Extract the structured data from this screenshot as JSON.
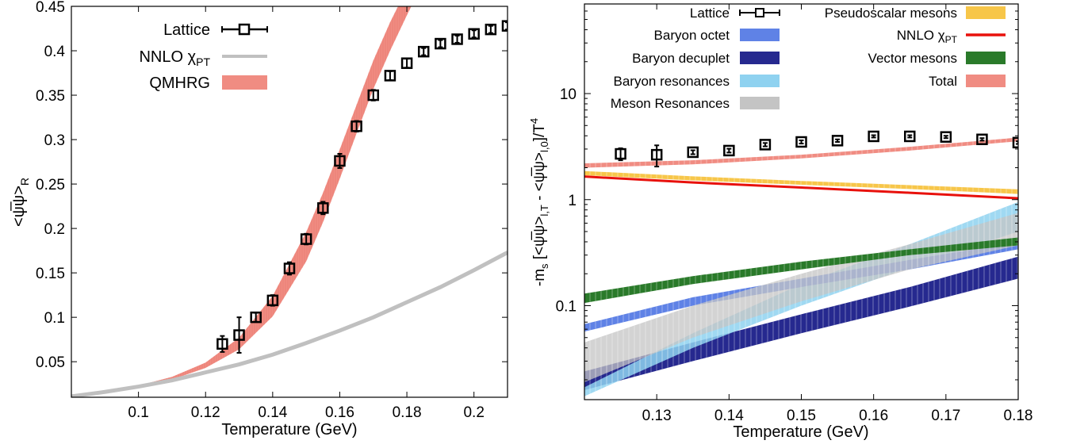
{
  "chart_data": [
    {
      "type": "line",
      "xlabel": "Temperature (GeV)",
      "ylabel": "<ψ̅ψ>",
      "ylabel_sub": "R",
      "xlim": [
        0.08,
        0.21
      ],
      "ylim": [
        0.01,
        0.45
      ],
      "xticks": [
        0.1,
        0.12,
        0.14,
        0.16,
        0.18,
        0.2
      ],
      "xtick_labels": [
        "0.1",
        "0.12",
        "0.14",
        "0.16",
        "0.18",
        "0.2"
      ],
      "yticks": [
        0.05,
        0.1,
        0.15,
        0.2,
        0.25,
        0.3,
        0.35,
        0.4,
        0.45
      ],
      "ytick_labels": [
        "0.05",
        "0.1",
        "0.15",
        "0.2",
        "0.25",
        "0.3",
        "0.35",
        "0.4",
        "0.45"
      ],
      "legend_position": "top-left",
      "legend": [
        {
          "label": "Lattice",
          "kind": "points"
        },
        {
          "label": "NNLO χ",
          "sub": "PT",
          "kind": "line"
        },
        {
          "label": "QMHRG",
          "kind": "band"
        }
      ],
      "colors": {
        "lattice": "#000000",
        "nnlo": "#c0c0c0",
        "qmhrg": "#f08c82"
      },
      "lattice": [
        {
          "x": 0.125,
          "y": 0.07,
          "err": 0.009
        },
        {
          "x": 0.13,
          "y": 0.08,
          "err": 0.02
        },
        {
          "x": 0.135,
          "y": 0.1,
          "err": 0.005
        },
        {
          "x": 0.14,
          "y": 0.119,
          "err": 0.006
        },
        {
          "x": 0.145,
          "y": 0.155,
          "err": 0.007
        },
        {
          "x": 0.15,
          "y": 0.188,
          "err": 0.006
        },
        {
          "x": 0.155,
          "y": 0.223,
          "err": 0.007
        },
        {
          "x": 0.16,
          "y": 0.276,
          "err": 0.008
        },
        {
          "x": 0.165,
          "y": 0.315,
          "err": 0.006
        },
        {
          "x": 0.17,
          "y": 0.35,
          "err": 0.006
        },
        {
          "x": 0.175,
          "y": 0.372,
          "err": 0.005
        },
        {
          "x": 0.18,
          "y": 0.386,
          "err": 0.005
        },
        {
          "x": 0.185,
          "y": 0.399,
          "err": 0.004
        },
        {
          "x": 0.19,
          "y": 0.408,
          "err": 0.004
        },
        {
          "x": 0.195,
          "y": 0.413,
          "err": 0.004
        },
        {
          "x": 0.2,
          "y": 0.419,
          "err": 0.004
        },
        {
          "x": 0.205,
          "y": 0.424,
          "err": 0.004
        },
        {
          "x": 0.21,
          "y": 0.428,
          "err": 0.004
        }
      ],
      "nnlo": {
        "x": [
          0.08,
          0.09,
          0.1,
          0.11,
          0.12,
          0.13,
          0.14,
          0.15,
          0.16,
          0.17,
          0.18,
          0.19,
          0.2,
          0.21
        ],
        "y": [
          0.011,
          0.016,
          0.022,
          0.029,
          0.038,
          0.047,
          0.058,
          0.071,
          0.085,
          0.1,
          0.117,
          0.134,
          0.153,
          0.173
        ]
      },
      "qmhrg": {
        "x": [
          0.08,
          0.09,
          0.1,
          0.11,
          0.12,
          0.13,
          0.14,
          0.15,
          0.155,
          0.16,
          0.165,
          0.17,
          0.175,
          0.18,
          0.184
        ],
        "ylow": [
          0.01,
          0.015,
          0.021,
          0.03,
          0.043,
          0.064,
          0.101,
          0.163,
          0.207,
          0.256,
          0.307,
          0.357,
          0.4,
          0.44,
          0.47
        ],
        "yhigh": [
          0.011,
          0.016,
          0.023,
          0.033,
          0.049,
          0.077,
          0.124,
          0.196,
          0.24,
          0.289,
          0.339,
          0.389,
          0.432,
          0.47,
          0.5
        ]
      }
    },
    {
      "type": "area",
      "xlabel": "Temperature (GeV)",
      "ylabel": "-m",
      "ylabel_sub1": "s",
      "ylabel_mid": " [<ψ̅ψ>",
      "ylabel_sub2": "l,T",
      "ylabel_mid2": " - <ψ̅ψ>",
      "ylabel_sub3": "l,0",
      "ylabel_end": "]/T",
      "ylabel_sup": "4",
      "yscale": "log",
      "xlim": [
        0.12,
        0.18
      ],
      "ylim": [
        0.013,
        70
      ],
      "xticks": [
        0.13,
        0.14,
        0.15,
        0.16,
        0.17,
        0.18
      ],
      "xtick_labels": [
        "0.13",
        "0.14",
        "0.15",
        "0.16",
        "0.17",
        "0.18"
      ],
      "yticks": [
        0.1,
        1,
        10
      ],
      "ytick_labels": [
        "0.1",
        "1",
        "10"
      ],
      "legend_position": "top",
      "legend": [
        {
          "label": "Lattice",
          "kind": "points",
          "key": "lattice"
        },
        {
          "label": "Baryon octet",
          "kind": "band",
          "key": "octet"
        },
        {
          "label": "Baryon decuplet",
          "kind": "band",
          "key": "decuplet"
        },
        {
          "label": "Baryon resonances",
          "kind": "band",
          "key": "bres"
        },
        {
          "label": "Meson Resonances",
          "kind": "band",
          "key": "mres"
        },
        {
          "label": "Pseudoscalar mesons",
          "kind": "band",
          "key": "ps"
        },
        {
          "label": "NNLO χ",
          "sub": "PT",
          "kind": "line",
          "key": "nnlo"
        },
        {
          "label": "Vector mesons",
          "kind": "band",
          "key": "vec"
        },
        {
          "label": "Total",
          "kind": "band",
          "key": "total"
        }
      ],
      "colors": {
        "lattice": "#000000",
        "octet": "#5f82e6",
        "decuplet": "#26298f",
        "bres": "#8fd2f0",
        "mres": "#c4c4c4",
        "ps": "#f7c649",
        "nnlo": "#e8110c",
        "vec": "#2a7a2a",
        "total": "#f08c82"
      },
      "bands": [
        {
          "key": "decuplet",
          "x": [
            0.12,
            0.135,
            0.15,
            0.165,
            0.18
          ],
          "ylow": [
            0.016,
            0.03,
            0.055,
            0.098,
            0.18
          ],
          "yhigh": [
            0.024,
            0.045,
            0.083,
            0.15,
            0.29
          ]
        },
        {
          "key": "bres",
          "x": [
            0.12,
            0.135,
            0.15,
            0.165,
            0.18
          ],
          "ylow": [
            0.014,
            0.04,
            0.1,
            0.23,
            0.5
          ],
          "yhigh": [
            0.017,
            0.055,
            0.16,
            0.38,
            0.95
          ]
        },
        {
          "key": "octet",
          "x": [
            0.12,
            0.135,
            0.15,
            0.165,
            0.18
          ],
          "ylow": [
            0.057,
            0.1,
            0.15,
            0.22,
            0.34
          ],
          "yhigh": [
            0.067,
            0.12,
            0.18,
            0.27,
            0.4
          ]
        },
        {
          "key": "mres",
          "x": [
            0.12,
            0.135,
            0.15,
            0.165,
            0.18
          ],
          "ylow": [
            0.019,
            0.05,
            0.11,
            0.22,
            0.37
          ],
          "yhigh": [
            0.045,
            0.1,
            0.2,
            0.38,
            0.75
          ]
        },
        {
          "key": "vec",
          "x": [
            0.12,
            0.135,
            0.15,
            0.165,
            0.18
          ],
          "ylow": [
            0.106,
            0.16,
            0.22,
            0.3,
            0.37
          ],
          "yhigh": [
            0.13,
            0.19,
            0.26,
            0.34,
            0.44
          ]
        },
        {
          "key": "ps",
          "x": [
            0.12,
            0.135,
            0.15,
            0.165,
            0.18
          ],
          "ylow": [
            1.7,
            1.52,
            1.38,
            1.26,
            1.13
          ],
          "yhigh": [
            1.86,
            1.66,
            1.5,
            1.37,
            1.25
          ]
        },
        {
          "key": "total",
          "x": [
            0.12,
            0.135,
            0.15,
            0.165,
            0.18
          ],
          "ylow": [
            2.0,
            2.15,
            2.45,
            2.9,
            3.55
          ],
          "yhigh": [
            2.2,
            2.35,
            2.65,
            3.15,
            3.85
          ]
        }
      ],
      "nnlo": {
        "x": [
          0.12,
          0.135,
          0.15,
          0.165,
          0.18
        ],
        "y": [
          1.65,
          1.45,
          1.3,
          1.16,
          1.03
        ]
      },
      "lattice": [
        {
          "x": 0.125,
          "y": 2.7,
          "err": 0.35
        },
        {
          "x": 0.13,
          "y": 2.65,
          "err": 0.6
        },
        {
          "x": 0.135,
          "y": 2.8,
          "err": 0.12
        },
        {
          "x": 0.14,
          "y": 2.9,
          "err": 0.12
        },
        {
          "x": 0.145,
          "y": 3.3,
          "err": 0.12
        },
        {
          "x": 0.15,
          "y": 3.5,
          "err": 0.12
        },
        {
          "x": 0.155,
          "y": 3.6,
          "err": 0.1
        },
        {
          "x": 0.16,
          "y": 3.95,
          "err": 0.1
        },
        {
          "x": 0.165,
          "y": 3.95,
          "err": 0.1
        },
        {
          "x": 0.17,
          "y": 3.9,
          "err": 0.1
        },
        {
          "x": 0.175,
          "y": 3.7,
          "err": 0.1
        },
        {
          "x": 0.18,
          "y": 3.45,
          "err": 0.1
        }
      ]
    }
  ]
}
